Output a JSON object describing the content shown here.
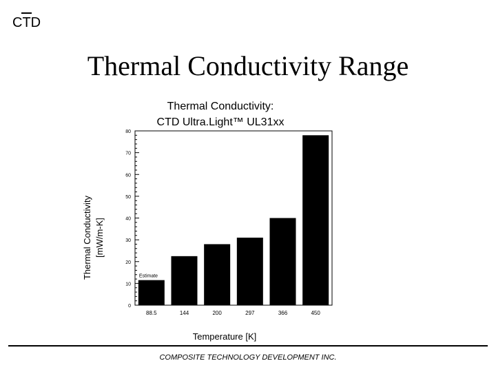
{
  "logo": {
    "pre": "C",
    "t": "T",
    "post": "D"
  },
  "slide_title": "Thermal Conductivity Range",
  "footer": {
    "company": "COMPOSITE TECHNOLOGY DEVELOPMENT INC."
  },
  "chart_data": {
    "type": "bar",
    "title_line1": "Thermal Conductivity:",
    "title_line2": "CTD Ultra.Light™ UL31xx",
    "xlabel": "Temperature [K]",
    "ylabel_line1": "Thermal Conductivity",
    "ylabel_line2": "[mW/m-K]",
    "categories": [
      "88.5",
      "144",
      "200",
      "297",
      "366",
      "450"
    ],
    "values": [
      11.5,
      22.5,
      28,
      31,
      40,
      78
    ],
    "ylim": [
      0,
      80
    ],
    "yticks": [
      0,
      10,
      20,
      30,
      40,
      50,
      60,
      70,
      80
    ],
    "annotations": [
      {
        "category": "88.5",
        "text": "Estimate"
      }
    ],
    "bar_color": "#000000",
    "grid": false
  }
}
